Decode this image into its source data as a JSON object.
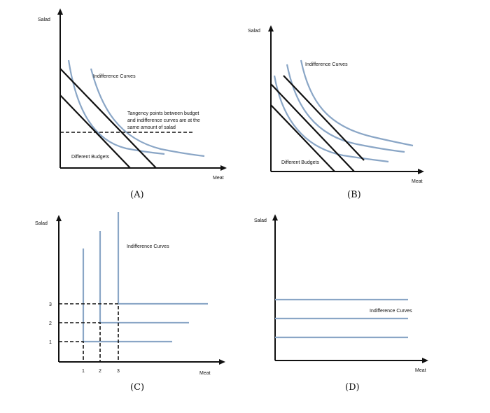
{
  "panels": {
    "a": {
      "caption": "(A)",
      "y_label": "Salad",
      "x_label": "Meat",
      "ic_label": "Indifference Curves",
      "note_lines": [
        "Tangency points between budget",
        "and indifference curves are at the",
        "same amount of salad"
      ],
      "budget_label": "Different Budgets"
    },
    "b": {
      "caption": "(B)",
      "y_label": "Salad",
      "x_label": "Meat",
      "ic_label": "Indifference Curves",
      "budget_label": "Different Budgets"
    },
    "c": {
      "caption": "(C)",
      "y_label": "Salad",
      "x_label": "Meat",
      "ic_label": "Indifference Curves",
      "y_ticks": [
        "1",
        "2",
        "3"
      ],
      "x_ticks": [
        "1",
        "2",
        "3"
      ]
    },
    "d": {
      "caption": "(D)",
      "y_label": "Salad",
      "x_label": "Meat",
      "ic_label": "Indifference Curves"
    }
  },
  "colors": {
    "axis": "#111111",
    "indifference_curve": "#8aa6c6",
    "budget_line": "#111111"
  }
}
